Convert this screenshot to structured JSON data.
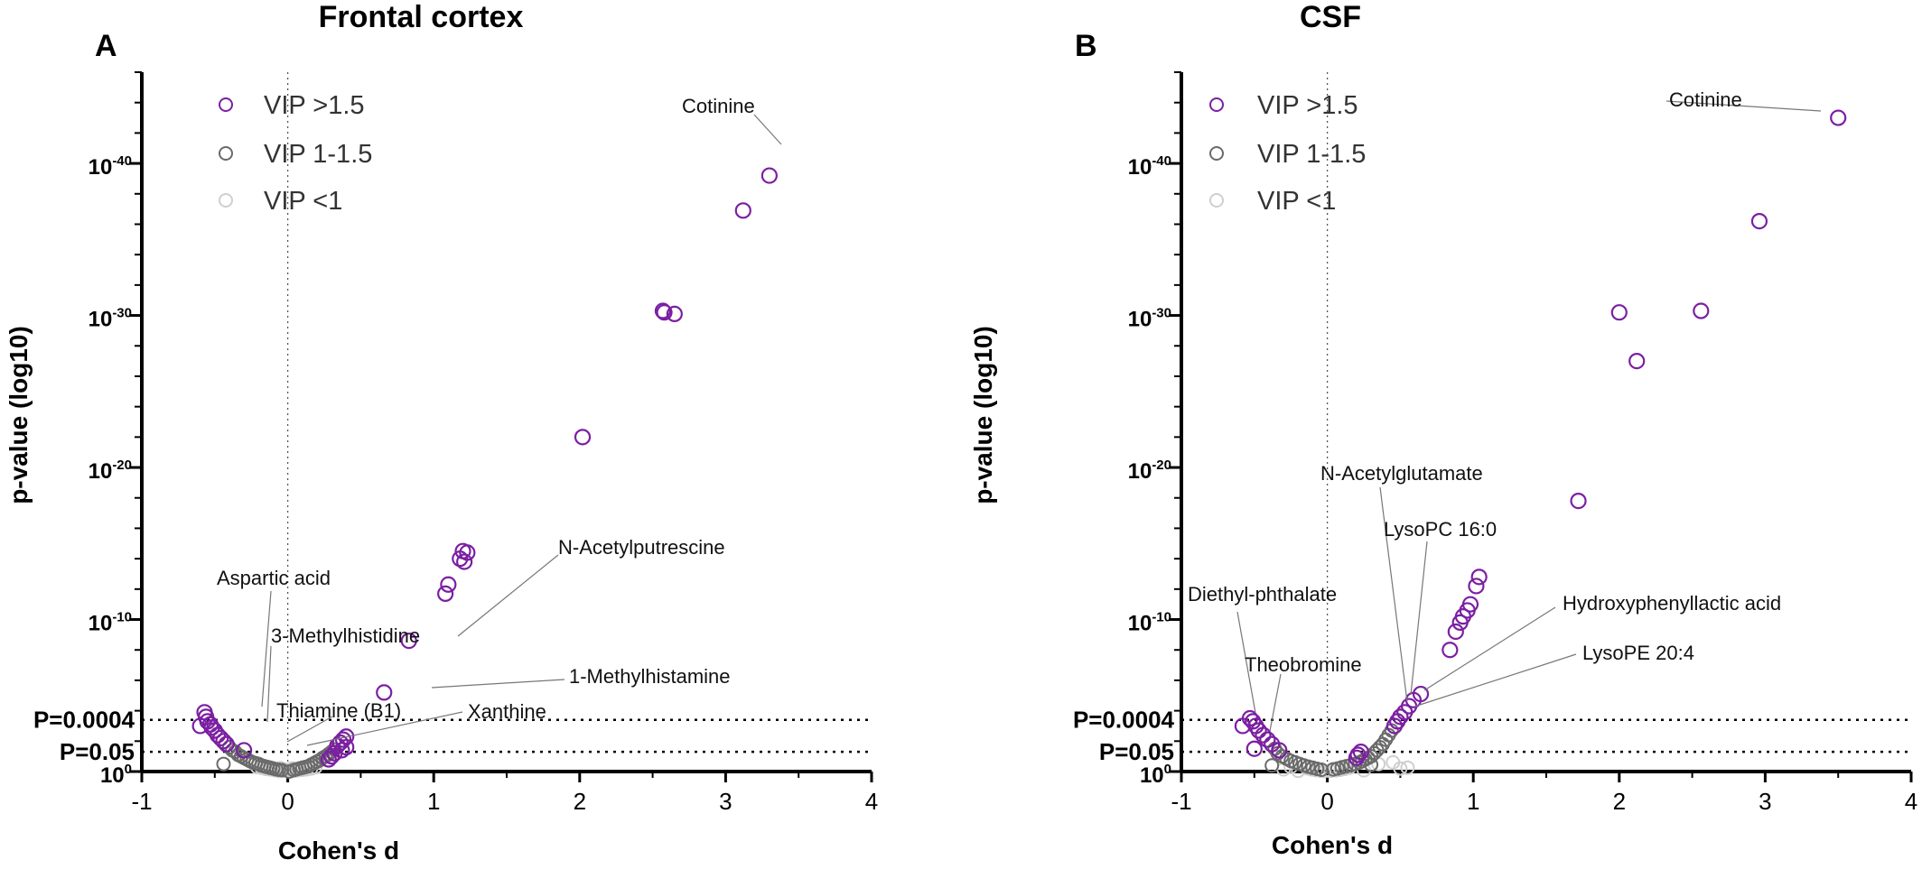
{
  "colors": {
    "vip_high": "#7b1fa2",
    "vip_mid": "#6a6a6a",
    "vip_low": "#cfcfcf",
    "axis": "#000000",
    "threshold": "#000000"
  },
  "chart_data": [
    {
      "type": "scatter",
      "panel_label": "A",
      "title": "Frontal cortex",
      "xlabel": "Cohen's d",
      "ylabel": "p-value (log10)",
      "xlim": [
        -1,
        4
      ],
      "ylim_neglog10": [
        0,
        46
      ],
      "xticks": [
        -1,
        0,
        1,
        2,
        3,
        4
      ],
      "yticks": [
        {
          "base": "10",
          "exp": "0",
          "value": 0
        },
        {
          "base": "10",
          "exp": "-10",
          "value": 10
        },
        {
          "base": "10",
          "exp": "-20",
          "value": 20
        },
        {
          "base": "10",
          "exp": "-30",
          "value": 30
        },
        {
          "base": "10",
          "exp": "-40",
          "value": 40
        }
      ],
      "thresholds": [
        {
          "label": "P=0.0004",
          "value": 3.4
        },
        {
          "label": "P=0.05",
          "value": 1.3
        }
      ],
      "legend": [
        {
          "key": "vip_high",
          "label": "VIP >1.5"
        },
        {
          "key": "vip_mid",
          "label": "VIP 1-1.5"
        },
        {
          "key": "vip_low",
          "label": "VIP <1"
        }
      ],
      "series": [
        {
          "name": "VIP >1.5",
          "key": "vip_high",
          "points": [
            [
              3.3,
              39.2
            ],
            [
              3.12,
              36.9
            ],
            [
              2.58,
              30.2
            ],
            [
              2.57,
              30.3
            ],
            [
              2.65,
              30.1
            ],
            [
              2.02,
              22.0
            ],
            [
              1.2,
              14.5
            ],
            [
              1.18,
              14.0
            ],
            [
              1.23,
              14.4
            ],
            [
              1.21,
              13.8
            ],
            [
              1.1,
              12.3
            ],
            [
              1.08,
              11.7
            ],
            [
              0.83,
              8.6
            ],
            [
              0.66,
              5.2
            ],
            [
              -0.57,
              3.9
            ],
            [
              -0.56,
              3.6
            ],
            [
              -0.55,
              3.3
            ],
            [
              -0.53,
              3.1
            ],
            [
              -0.52,
              2.9
            ],
            [
              -0.5,
              2.7
            ],
            [
              -0.48,
              2.4
            ],
            [
              -0.46,
              2.2
            ],
            [
              -0.44,
              2.0
            ],
            [
              -0.42,
              1.8
            ],
            [
              -0.6,
              3.0
            ],
            [
              -0.3,
              1.4
            ],
            [
              0.4,
              2.3
            ],
            [
              0.38,
              2.1
            ],
            [
              0.36,
              1.9
            ],
            [
              0.34,
              1.7
            ],
            [
              0.37,
              1.4
            ],
            [
              0.32,
              1.2
            ],
            [
              0.3,
              1.0
            ],
            [
              0.28,
              0.8
            ],
            [
              0.4,
              1.6
            ]
          ]
        },
        {
          "name": "VIP 1-1.5",
          "key": "vip_mid",
          "points": [
            [
              -0.4,
              1.6
            ],
            [
              -0.38,
              1.4
            ],
            [
              -0.36,
              1.3
            ],
            [
              -0.34,
              1.1
            ],
            [
              -0.32,
              1.0
            ],
            [
              -0.3,
              0.9
            ],
            [
              -0.28,
              0.8
            ],
            [
              -0.26,
              0.7
            ],
            [
              -0.24,
              0.6
            ],
            [
              -0.22,
              0.55
            ],
            [
              -0.2,
              0.5
            ],
            [
              -0.18,
              0.4
            ],
            [
              -0.16,
              0.35
            ],
            [
              -0.14,
              0.3
            ],
            [
              -0.12,
              0.25
            ],
            [
              -0.1,
              0.2
            ],
            [
              -0.08,
              0.15
            ],
            [
              -0.06,
              0.12
            ],
            [
              -0.04,
              0.1
            ],
            [
              0.04,
              0.1
            ],
            [
              0.06,
              0.15
            ],
            [
              0.08,
              0.2
            ],
            [
              0.1,
              0.25
            ],
            [
              0.12,
              0.3
            ],
            [
              0.14,
              0.35
            ],
            [
              0.16,
              0.45
            ],
            [
              0.18,
              0.55
            ],
            [
              0.2,
              0.65
            ],
            [
              0.22,
              0.75
            ],
            [
              0.24,
              0.9
            ],
            [
              0.26,
              1.0
            ],
            [
              0.28,
              1.15
            ],
            [
              0.3,
              1.3
            ],
            [
              0.32,
              1.45
            ],
            [
              -0.44,
              0.5
            ],
            [
              0.01,
              0.0
            ]
          ]
        },
        {
          "name": "VIP <1",
          "key": "vip_low",
          "points": [
            [
              -0.03,
              0.05
            ],
            [
              0.02,
              0.03
            ],
            [
              -0.01,
              0.08
            ],
            [
              0.05,
              0.06
            ],
            [
              -0.06,
              0.04
            ],
            [
              0.07,
              0.09
            ],
            [
              -0.09,
              0.1
            ],
            [
              0.1,
              0.12
            ],
            [
              -0.12,
              0.14
            ],
            [
              0.13,
              0.15
            ],
            [
              -0.15,
              0.18
            ],
            [
              0.16,
              0.2
            ],
            [
              -0.18,
              0.25
            ],
            [
              0.19,
              0.28
            ],
            [
              -0.21,
              0.3
            ],
            [
              0.0,
              0.12
            ],
            [
              0.03,
              0.2
            ],
            [
              -0.05,
              0.22
            ]
          ]
        }
      ],
      "annotations": [
        {
          "text": "Cotinine",
          "point": [
            3.3,
            39.2
          ]
        },
        {
          "text": "N-Acetylputrescine",
          "point": [
            0.83,
            8.6
          ]
        },
        {
          "text": "1-Methylhistamine",
          "point": [
            0.66,
            5.2
          ]
        },
        {
          "text": "Aspartic acid",
          "point": [
            -0.57,
            3.9
          ]
        },
        {
          "text": "3-Methylhistidine",
          "point": [
            -0.52,
            2.9
          ]
        },
        {
          "text": "Thiamine (B1)",
          "point": [
            -0.42,
            1.8
          ]
        },
        {
          "text": "Xanthine",
          "point": [
            -0.3,
            1.4
          ]
        }
      ]
    },
    {
      "type": "scatter",
      "panel_label": "B",
      "title": "CSF",
      "xlabel": "Cohen's d",
      "ylabel": "p-value (log10)",
      "xlim": [
        -1,
        4
      ],
      "ylim_neglog10": [
        0,
        46
      ],
      "xticks": [
        -1,
        0,
        1,
        2,
        3,
        4
      ],
      "yticks": [
        {
          "base": "10",
          "exp": "0",
          "value": 0
        },
        {
          "base": "10",
          "exp": "-10",
          "value": 10
        },
        {
          "base": "10",
          "exp": "-20",
          "value": 20
        },
        {
          "base": "10",
          "exp": "-30",
          "value": 30
        },
        {
          "base": "10",
          "exp": "-40",
          "value": 40
        }
      ],
      "thresholds": [
        {
          "label": "P=0.0004",
          "value": 3.4
        },
        {
          "label": "P=0.05",
          "value": 1.3
        }
      ],
      "legend": [
        {
          "key": "vip_high",
          "label": "VIP >1.5"
        },
        {
          "key": "vip_mid",
          "label": "VIP 1-1.5"
        },
        {
          "key": "vip_low",
          "label": "VIP <1"
        }
      ],
      "series": [
        {
          "name": "VIP >1.5",
          "key": "vip_high",
          "points": [
            [
              3.5,
              43.0
            ],
            [
              2.96,
              36.2
            ],
            [
              2.0,
              30.2
            ],
            [
              2.56,
              30.3
            ],
            [
              2.12,
              27.0
            ],
            [
              1.72,
              17.8
            ],
            [
              1.04,
              12.8
            ],
            [
              1.02,
              12.2
            ],
            [
              0.98,
              11.0
            ],
            [
              0.96,
              10.6
            ],
            [
              0.93,
              10.2
            ],
            [
              0.91,
              9.8
            ],
            [
              0.88,
              9.2
            ],
            [
              0.84,
              8.0
            ],
            [
              0.64,
              5.1
            ],
            [
              0.59,
              4.7
            ],
            [
              0.56,
              4.3
            ],
            [
              0.53,
              3.9
            ],
            [
              0.5,
              3.6
            ],
            [
              0.48,
              3.3
            ],
            [
              0.46,
              3.0
            ],
            [
              -0.53,
              3.5
            ],
            [
              -0.51,
              3.3
            ],
            [
              -0.49,
              3.0
            ],
            [
              -0.47,
              2.7
            ],
            [
              -0.44,
              2.4
            ],
            [
              -0.41,
              2.1
            ],
            [
              -0.38,
              1.8
            ],
            [
              -0.58,
              3.0
            ],
            [
              -0.5,
              1.5
            ],
            [
              -0.33,
              1.4
            ],
            [
              0.23,
              1.3
            ],
            [
              0.21,
              1.1
            ],
            [
              0.2,
              0.9
            ]
          ]
        },
        {
          "name": "VIP 1-1.5",
          "key": "vip_mid",
          "points": [
            [
              0.44,
              2.7
            ],
            [
              0.42,
              2.4
            ],
            [
              0.4,
              2.1
            ],
            [
              0.38,
              1.8
            ],
            [
              0.36,
              1.6
            ],
            [
              0.34,
              1.4
            ],
            [
              0.32,
              1.2
            ],
            [
              0.3,
              1.0
            ],
            [
              0.28,
              0.9
            ],
            [
              0.26,
              0.8
            ],
            [
              0.24,
              0.7
            ],
            [
              0.22,
              0.6
            ],
            [
              0.19,
              0.5
            ],
            [
              0.16,
              0.42
            ],
            [
              0.13,
              0.35
            ],
            [
              0.1,
              0.28
            ],
            [
              0.07,
              0.2
            ],
            [
              0.04,
              0.14
            ],
            [
              -0.04,
              0.12
            ],
            [
              -0.07,
              0.18
            ],
            [
              -0.1,
              0.25
            ],
            [
              -0.13,
              0.32
            ],
            [
              -0.16,
              0.4
            ],
            [
              -0.19,
              0.5
            ],
            [
              -0.22,
              0.6
            ],
            [
              -0.25,
              0.7
            ],
            [
              -0.28,
              0.85
            ],
            [
              -0.31,
              1.0
            ],
            [
              -0.34,
              1.2
            ],
            [
              -0.36,
              1.5
            ],
            [
              -0.38,
              0.4
            ],
            [
              0.3,
              0.45
            ]
          ]
        },
        {
          "name": "VIP <1",
          "key": "vip_low",
          "points": [
            [
              -0.02,
              0.04
            ],
            [
              0.02,
              0.05
            ],
            [
              -0.05,
              0.07
            ],
            [
              0.06,
              0.08
            ],
            [
              -0.08,
              0.1
            ],
            [
              0.09,
              0.12
            ],
            [
              -0.11,
              0.15
            ],
            [
              0.12,
              0.18
            ],
            [
              -0.14,
              0.22
            ],
            [
              0.15,
              0.25
            ],
            [
              -0.25,
              0.3
            ],
            [
              0.35,
              0.5
            ],
            [
              0.45,
              0.6
            ],
            [
              -0.3,
              0.15
            ],
            [
              0.5,
              0.2
            ],
            [
              0.55,
              0.25
            ],
            [
              -0.2,
              0.05
            ],
            [
              0.25,
              0.08
            ]
          ]
        }
      ],
      "annotations": [
        {
          "text": "Cotinine",
          "point": [
            3.5,
            43.0
          ]
        },
        {
          "text": "N-Acetylglutamate",
          "point": [
            0.48,
            3.3
          ]
        },
        {
          "text": "LysoPC 16:0",
          "point": [
            0.5,
            3.6
          ]
        },
        {
          "text": "Hydroxyphenyllactic acid",
          "point": [
            0.64,
            5.1
          ]
        },
        {
          "text": "LysoPE 20:4",
          "point": [
            0.59,
            4.7
          ]
        },
        {
          "text": "Diethyl-phthalate",
          "point": [
            -0.53,
            3.5
          ]
        },
        {
          "text": "Theobromine",
          "point": [
            -0.44,
            2.4
          ]
        }
      ]
    }
  ]
}
